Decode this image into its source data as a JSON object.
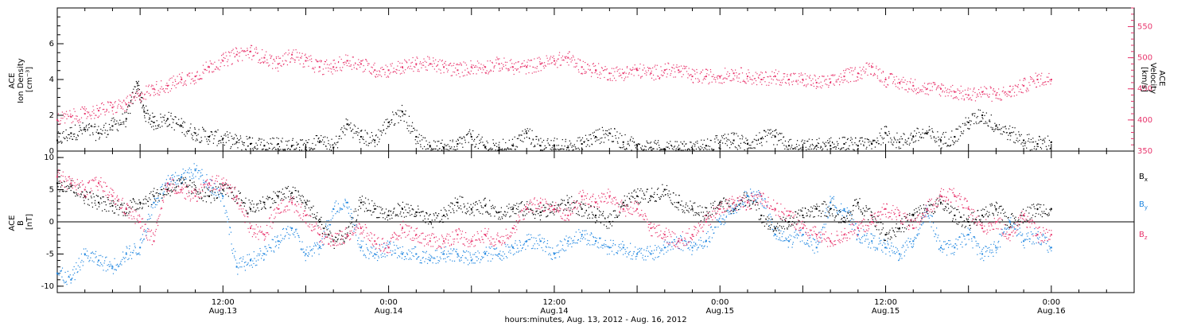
{
  "colors": {
    "black": "#000000",
    "pink": "#e8336b",
    "blue": "#1f86e0",
    "axis": "#000000"
  },
  "figure": {
    "x_axis_title": "hours:minutes, Aug. 13, 2012 - Aug. 16, 2012",
    "x_major_labels": [
      {
        "time": "12:00",
        "date": "Aug.13",
        "hour": 12
      },
      {
        "time": "0:00",
        "date": "Aug.14",
        "hour": 24
      },
      {
        "time": "12:00",
        "date": "Aug.14",
        "hour": 36
      },
      {
        "time": "0:00",
        "date": "Aug.15",
        "hour": 48
      },
      {
        "time": "12:00",
        "date": "Aug.15",
        "hour": 60
      },
      {
        "time": "0:00",
        "date": "Aug.16",
        "hour": 72
      }
    ]
  },
  "chart_data": [
    {
      "type": "scatter",
      "panel": "top",
      "x_units": "hours from Aug. 13, 2012 0:00",
      "xlim": [
        0,
        78
      ],
      "left_axis": {
        "label_lines": [
          "ACE",
          "Ion Density",
          "[cm⁻³]"
        ],
        "ylim": [
          0,
          8
        ],
        "ticks": [
          0,
          2,
          4,
          6
        ]
      },
      "right_axis": {
        "label_lines": [
          "ACE",
          "Velocity",
          "[km/s]"
        ],
        "ylim": [
          350,
          580
        ],
        "ticks": [
          350,
          400,
          450,
          500,
          550
        ],
        "color": "#e8336b"
      },
      "series": [
        {
          "color": "#000000",
          "axis": "left",
          "x": [
            0,
            1,
            2,
            3,
            4,
            5,
            5.8,
            6.3,
            7,
            8,
            9,
            10,
            11,
            12,
            13,
            14,
            15,
            16,
            17,
            18,
            19,
            20,
            21,
            22,
            23,
            24,
            25,
            26,
            27,
            28,
            29,
            30,
            31,
            32,
            33,
            34,
            35,
            36,
            37,
            38,
            39,
            40,
            41,
            42,
            43,
            44,
            45,
            46,
            47,
            48,
            49,
            50,
            51,
            52,
            53,
            54,
            55,
            56,
            57,
            58,
            59,
            60,
            61,
            62,
            63,
            64,
            65,
            66,
            67,
            68,
            69,
            70,
            71,
            72
          ],
          "y": [
            0.6,
            1.0,
            1.2,
            1.0,
            1.4,
            1.8,
            3.8,
            2.2,
            1.6,
            1.8,
            1.4,
            1.0,
            0.8,
            0.7,
            0.5,
            0.4,
            0.3,
            0.4,
            0.3,
            0.2,
            0.5,
            0.2,
            1.5,
            0.8,
            0.6,
            1.6,
            2.2,
            0.8,
            0.3,
            0.2,
            0.4,
            0.8,
            0.2,
            0.2,
            0.3,
            1.0,
            0.3,
            0.3,
            0.2,
            0.4,
            0.8,
            1.0,
            0.5,
            0.3,
            0.2,
            0.1,
            0.1,
            0.1,
            0.3,
            0.5,
            0.6,
            0.4,
            0.7,
            0.8,
            0.3,
            0.2,
            0.3,
            0.3,
            0.4,
            0.3,
            0.4,
            1.0,
            0.5,
            0.8,
            1.0,
            0.6,
            0.8,
            1.6,
            2.0,
            1.4,
            1.0,
            0.6,
            0.4,
            0.5
          ]
        },
        {
          "color": "#e8336b",
          "axis": "right",
          "x": [
            0,
            1,
            2,
            3,
            4,
            5,
            6,
            7,
            8,
            9,
            10,
            11,
            12,
            13,
            14,
            15,
            16,
            17,
            18,
            19,
            20,
            21,
            22,
            23,
            24,
            25,
            26,
            27,
            28,
            29,
            30,
            31,
            32,
            33,
            34,
            35,
            36,
            37,
            38,
            39,
            40,
            41,
            42,
            43,
            44,
            45,
            46,
            47,
            48,
            49,
            50,
            51,
            52,
            53,
            54,
            55,
            56,
            57,
            58,
            59,
            60,
            61,
            62,
            63,
            64,
            65,
            66,
            67,
            68,
            69,
            70,
            71,
            72
          ],
          "y": [
            400,
            405,
            410,
            415,
            420,
            425,
            440,
            450,
            455,
            465,
            470,
            485,
            495,
            505,
            510,
            500,
            490,
            505,
            495,
            485,
            485,
            495,
            490,
            480,
            480,
            485,
            490,
            490,
            485,
            480,
            485,
            485,
            490,
            485,
            485,
            490,
            495,
            500,
            485,
            480,
            475,
            475,
            480,
            475,
            480,
            480,
            470,
            470,
            470,
            475,
            470,
            465,
            470,
            465,
            465,
            460,
            460,
            470,
            475,
            485,
            465,
            460,
            455,
            450,
            450,
            445,
            440,
            445,
            440,
            445,
            455,
            465,
            465
          ]
        }
      ]
    },
    {
      "type": "scatter",
      "panel": "bottom",
      "x_units": "hours from Aug. 13, 2012 0:00",
      "xlim": [
        0,
        78
      ],
      "left_axis": {
        "label_lines": [
          "ACE",
          "B",
          "[nT]"
        ],
        "ylim": [
          -11,
          11
        ],
        "ticks": [
          -10,
          -5,
          0,
          5,
          10
        ]
      },
      "legend": [
        {
          "name": "B",
          "sub": "x",
          "color": "#000000"
        },
        {
          "name": "B",
          "sub": "y",
          "color": "#1f86e0"
        },
        {
          "name": "B",
          "sub": "z",
          "color": "#e8336b"
        }
      ],
      "series": [
        {
          "name": "Bx",
          "color": "#000000",
          "x": [
            0,
            1,
            2,
            3,
            4,
            5,
            6,
            7,
            8,
            9,
            10,
            11,
            12,
            13,
            14,
            15,
            16,
            17,
            18,
            19,
            20,
            21,
            22,
            23,
            24,
            25,
            26,
            27,
            28,
            29,
            30,
            31,
            32,
            33,
            34,
            35,
            36,
            37,
            38,
            39,
            40,
            41,
            42,
            43,
            44,
            45,
            46,
            47,
            48,
            49,
            50,
            51,
            52,
            53,
            54,
            55,
            56,
            57,
            58,
            59,
            60,
            61,
            62,
            63,
            64,
            65,
            66,
            67,
            68,
            69,
            70,
            71,
            72
          ],
          "y": [
            6,
            5.5,
            4,
            3,
            2.5,
            2,
            3,
            4,
            5,
            6,
            5,
            4,
            5,
            4,
            2,
            3,
            4,
            4.5,
            3,
            0,
            -3,
            -2,
            3,
            2,
            1,
            2,
            1.5,
            0,
            1,
            3,
            2,
            2.5,
            1.5,
            2,
            2,
            1.5,
            2,
            3,
            2,
            1,
            0,
            3,
            4,
            4,
            5,
            3,
            2,
            1,
            3,
            2,
            4,
            1,
            -1,
            0,
            1,
            2,
            2,
            0,
            3,
            1,
            -2,
            -1,
            1,
            2,
            3,
            1,
            0,
            1,
            2,
            0,
            1,
            2,
            2
          ]
        },
        {
          "name": "By",
          "color": "#1f86e0",
          "x": [
            0,
            1,
            2,
            3,
            4,
            5,
            6,
            7,
            8,
            9,
            10,
            11,
            12,
            13,
            14,
            15,
            16,
            17,
            18,
            19,
            20,
            21,
            22,
            23,
            24,
            25,
            26,
            27,
            28,
            29,
            30,
            31,
            32,
            33,
            34,
            35,
            36,
            37,
            38,
            39,
            40,
            41,
            42,
            43,
            44,
            45,
            46,
            47,
            48,
            49,
            50,
            51,
            52,
            53,
            54,
            55,
            56,
            57,
            58,
            59,
            60,
            61,
            62,
            63,
            64,
            65,
            66,
            67,
            68,
            69,
            70,
            71,
            72
          ],
          "y": [
            -8,
            -9,
            -5,
            -6,
            -7,
            -5,
            -4,
            3,
            6,
            7,
            8,
            6,
            4,
            -7,
            -6,
            -5,
            -3,
            -1,
            -5,
            -4,
            2,
            3,
            -4,
            -5,
            -4,
            -5,
            -5,
            -6,
            -5,
            -5,
            -6,
            -5,
            -5,
            -4,
            -3,
            -3,
            -5,
            -3,
            -2,
            -3,
            -4,
            -4,
            -5,
            -5,
            -4,
            -3,
            -4,
            -3,
            0,
            2,
            4,
            4,
            -2,
            -3,
            -2,
            -4,
            3,
            2,
            -2,
            -3,
            -4,
            -5,
            -3,
            2,
            -4,
            -4,
            -2,
            -5,
            -4,
            0,
            -3,
            -2,
            -4
          ]
        },
        {
          "name": "Bz",
          "color": "#e8336b",
          "x": [
            0,
            1,
            2,
            3,
            4,
            5,
            6,
            7,
            8,
            9,
            10,
            11,
            12,
            13,
            14,
            15,
            16,
            17,
            18,
            19,
            20,
            21,
            22,
            23,
            24,
            25,
            26,
            27,
            28,
            29,
            30,
            31,
            32,
            33,
            34,
            35,
            36,
            37,
            38,
            39,
            40,
            41,
            42,
            43,
            44,
            45,
            46,
            47,
            48,
            49,
            50,
            51,
            52,
            53,
            54,
            55,
            56,
            57,
            58,
            59,
            60,
            61,
            62,
            63,
            64,
            65,
            66,
            67,
            68,
            69,
            70,
            71,
            72
          ],
          "y": [
            7,
            6,
            5,
            6,
            4,
            2,
            0,
            -3,
            6,
            5,
            4,
            6,
            6,
            4,
            -1,
            -2,
            2,
            3,
            1,
            -2,
            -3,
            -2,
            -1,
            -3,
            -4,
            -1,
            -2,
            -3,
            -3,
            -2,
            -3,
            -2,
            -3,
            -1,
            2,
            3,
            2,
            1,
            4,
            3,
            4,
            2,
            2,
            -1,
            -2,
            -3,
            -2,
            0,
            2,
            3,
            3,
            4,
            2,
            1,
            -1,
            -2,
            -3,
            -2,
            -1,
            0,
            2,
            1,
            -1,
            2,
            4,
            4,
            2,
            -1,
            0,
            -2,
            1,
            -2,
            -2
          ]
        }
      ]
    }
  ]
}
